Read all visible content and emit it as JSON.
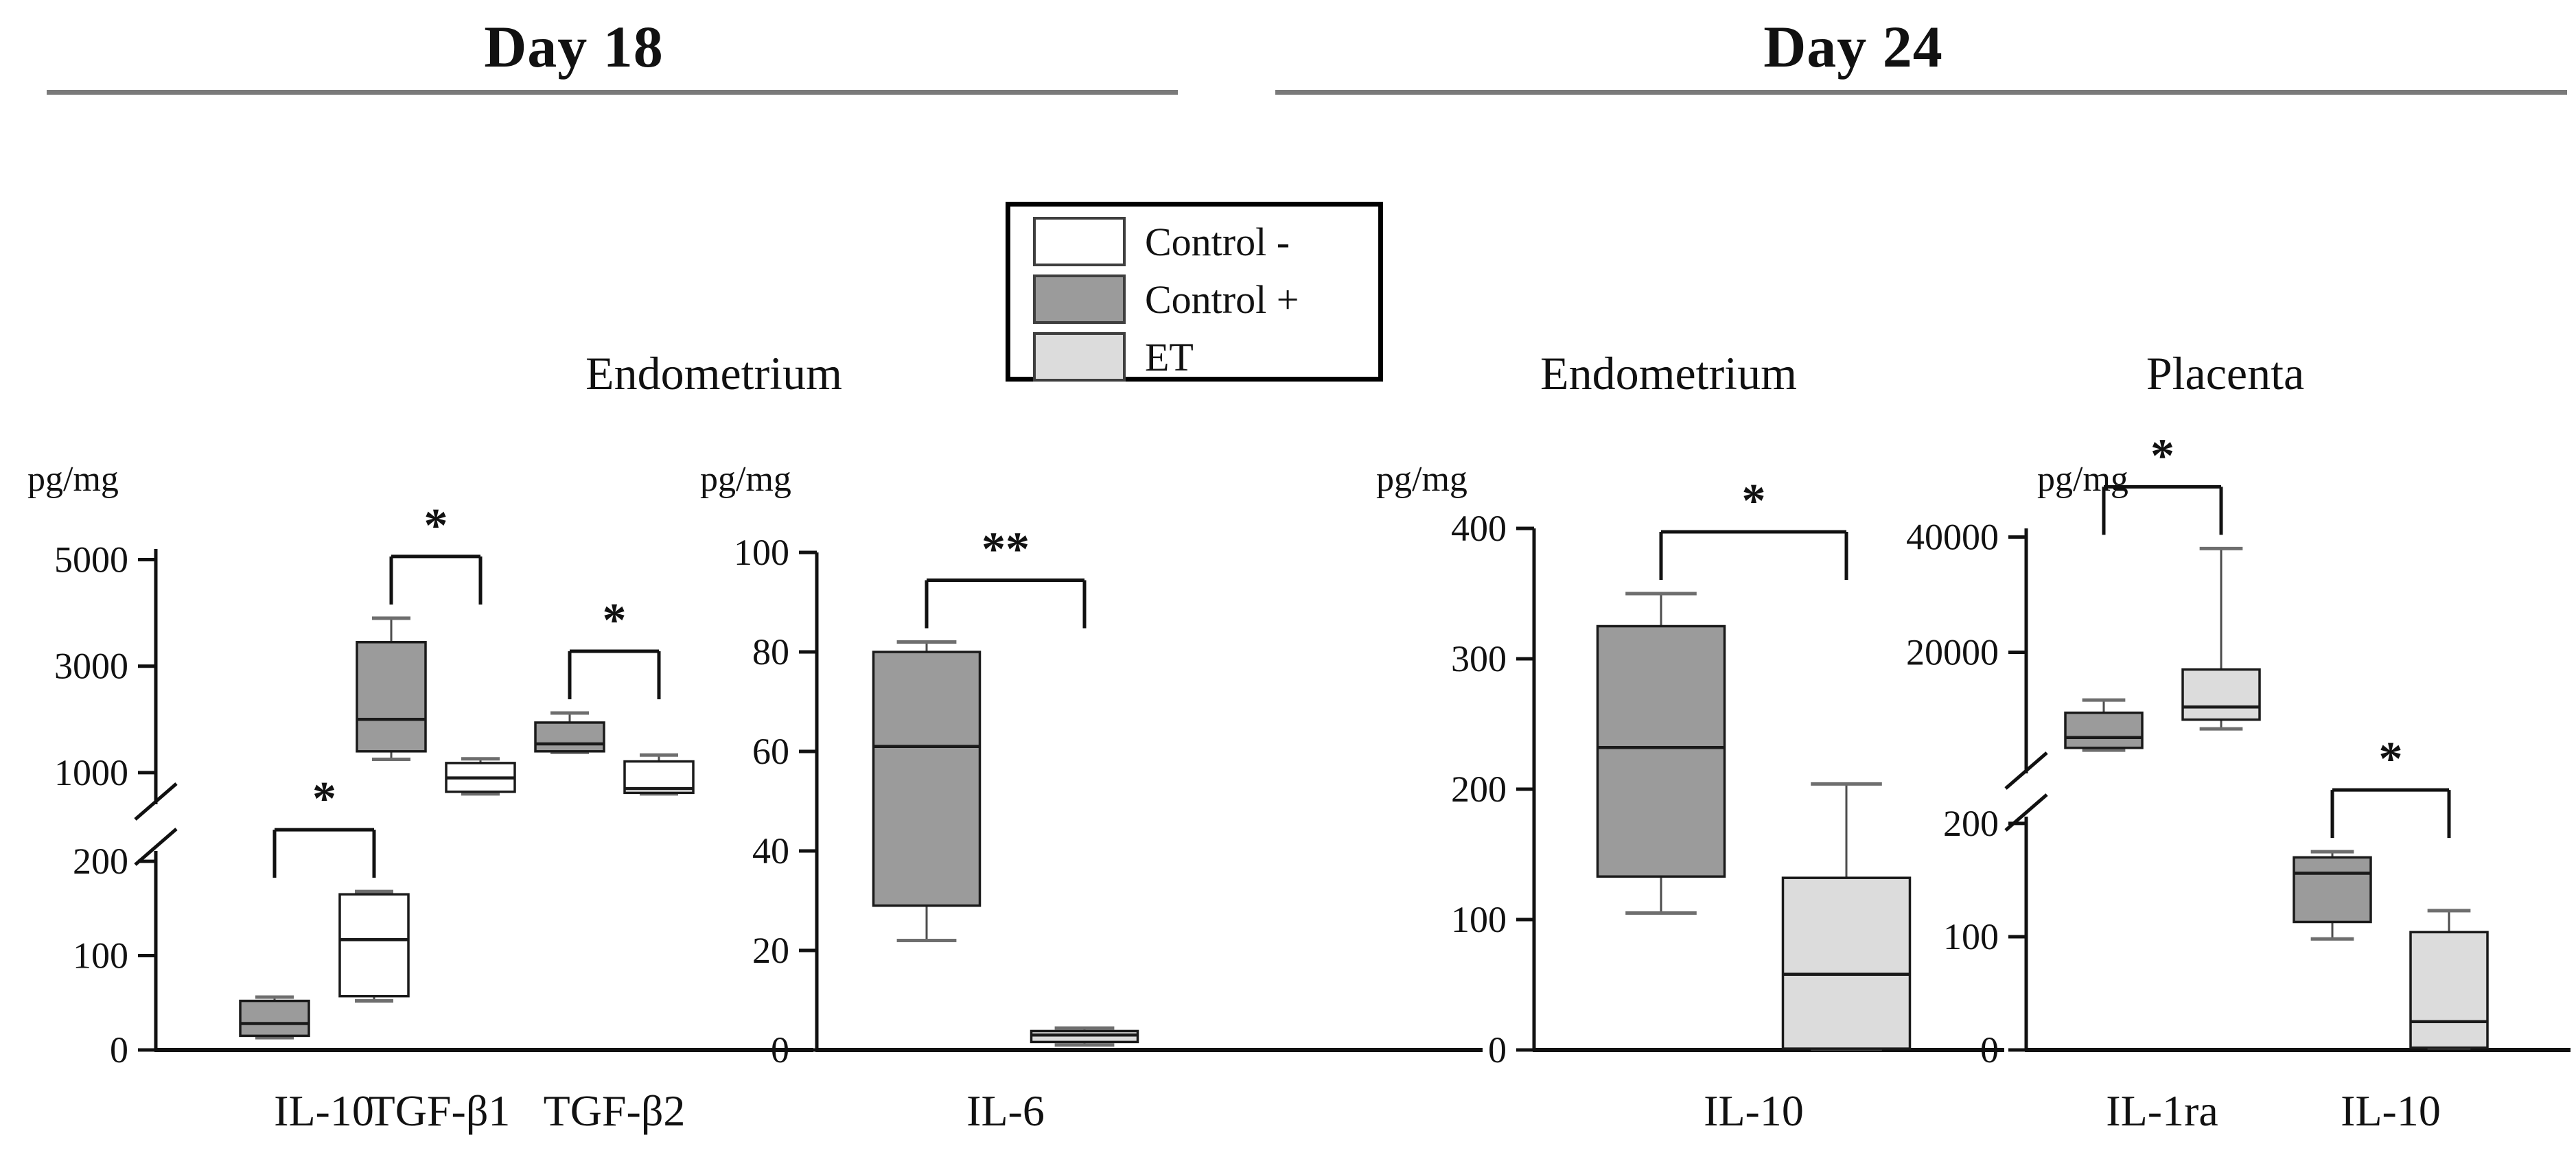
{
  "headers": {
    "day18": "Day 18",
    "day24": "Day 24"
  },
  "sections": {
    "d18_endometrium": "Endometrium",
    "d24_endometrium": "Endometrium",
    "d24_placenta": "Placenta"
  },
  "legend": {
    "items": [
      {
        "series": "control_minus",
        "label": "Control -"
      },
      {
        "series": "control_plus",
        "label": "Control +"
      },
      {
        "series": "et",
        "label": "ET"
      }
    ]
  },
  "colors": {
    "control_minus": "#ffffff",
    "control_plus": "#9b9b9b",
    "et": "#dcdcdc",
    "axis": "#111111",
    "whisker": "#4d4d4d",
    "cap": "#6e6e6e",
    "box_stroke": "#1a1a1a",
    "underline": "#7a7a7a"
  },
  "chart_data": [
    {
      "id": "day18-endometrium",
      "type": "box",
      "unit": "pg/mg",
      "broken_axis": true,
      "segments": [
        {
          "name": "upper",
          "v_top": 5200,
          "v_bottom": 560,
          "ticks": [
            5000,
            3000,
            1000
          ]
        },
        {
          "name": "lower",
          "v_top": 211,
          "v_bottom": 0,
          "ticks": [
            200,
            100,
            0
          ]
        }
      ],
      "groups": [
        {
          "label": "IL-10",
          "significance": "*",
          "boxes": [
            {
              "series": "control_plus",
              "segment": "lower",
              "lo": 13,
              "q1": 15,
              "med": 28,
              "q3": 52,
              "hi": 56
            },
            {
              "series": "control_minus",
              "segment": "lower",
              "lo": 52,
              "q1": 57,
              "med": 117,
              "q3": 165,
              "hi": 168
            }
          ]
        },
        {
          "label": "TGF-β1",
          "significance": "*",
          "boxes": [
            {
              "series": "control_plus",
              "segment": "upper",
              "lo": 1250,
              "q1": 1400,
              "med": 2000,
              "q3": 3450,
              "hi": 3900
            },
            {
              "series": "control_minus",
              "segment": "upper",
              "lo": 600,
              "q1": 640,
              "med": 900,
              "q3": 1180,
              "hi": 1260
            }
          ]
        },
        {
          "label": "TGF-β2",
          "significance": "*",
          "boxes": [
            {
              "series": "control_plus",
              "segment": "upper",
              "lo": 1380,
              "q1": 1400,
              "med": 1540,
              "q3": 1940,
              "hi": 2120
            },
            {
              "series": "control_minus",
              "segment": "upper",
              "lo": 600,
              "q1": 620,
              "med": 700,
              "q3": 1210,
              "hi": 1330
            }
          ]
        }
      ]
    },
    {
      "id": "day18-endometrium-il6",
      "type": "box",
      "unit": "pg/mg",
      "broken_axis": false,
      "segments": [
        {
          "name": "main",
          "v_top": 100,
          "v_bottom": 0,
          "ticks": [
            100,
            80,
            60,
            40,
            20,
            0
          ]
        }
      ],
      "groups": [
        {
          "label": "IL-6",
          "significance": "**",
          "boxes": [
            {
              "series": "control_plus",
              "segment": "main",
              "lo": 22,
              "q1": 29,
              "med": 61,
              "q3": 80,
              "hi": 82
            },
            {
              "series": "et",
              "segment": "main",
              "lo": 1,
              "q1": 1.6,
              "med": 3,
              "q3": 3.8,
              "hi": 4.4
            }
          ]
        }
      ]
    },
    {
      "id": "day24-endometrium",
      "type": "box",
      "unit": "pg/mg",
      "broken_axis": false,
      "segments": [
        {
          "name": "main",
          "v_top": 400,
          "v_bottom": 0,
          "ticks": [
            400,
            300,
            200,
            100,
            0
          ]
        }
      ],
      "groups": [
        {
          "label": "IL-10",
          "significance": "*",
          "boxes": [
            {
              "series": "control_plus",
              "segment": "main",
              "lo": 105,
              "q1": 133,
              "med": 232,
              "q3": 325,
              "hi": 350
            },
            {
              "series": "et",
              "segment": "main",
              "lo": 1,
              "q1": 1,
              "med": 58,
              "q3": 132,
              "hi": 204
            }
          ]
        }
      ]
    },
    {
      "id": "day24-placenta",
      "type": "box",
      "unit": "pg/mg",
      "broken_axis": true,
      "segments": [
        {
          "name": "upper",
          "v_top": 41500,
          "v_bottom": 400,
          "ticks": [
            40000,
            20000
          ]
        },
        {
          "name": "lower",
          "v_top": 206,
          "v_bottom": 0,
          "ticks": [
            200,
            100,
            0
          ]
        }
      ],
      "groups": [
        {
          "label": "IL-1ra",
          "significance": "*",
          "boxes": [
            {
              "series": "control_plus",
              "segment": "upper",
              "lo": 3000,
              "q1": 3400,
              "med": 5200,
              "q3": 9500,
              "hi": 11700
            },
            {
              "series": "et",
              "segment": "upper",
              "lo": 6700,
              "q1": 8300,
              "med": 10500,
              "q3": 17000,
              "hi": 38000
            }
          ]
        },
        {
          "label": "IL-10",
          "significance": "*",
          "boxes": [
            {
              "series": "control_plus",
              "segment": "lower",
              "lo": 98,
              "q1": 113,
              "med": 156,
              "q3": 170,
              "hi": 175
            },
            {
              "series": "et",
              "segment": "lower",
              "lo": 2,
              "q1": 2,
              "med": 25,
              "q3": 104,
              "hi": 123
            }
          ]
        }
      ]
    }
  ]
}
